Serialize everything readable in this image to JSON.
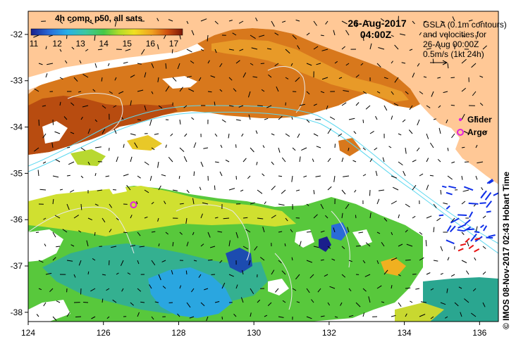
{
  "map": {
    "title_box": "4h comp, p50, all sats",
    "date": "26-Aug-2017",
    "time": "04:00Z",
    "info_lines": [
      "GSLA (0.1m contours)",
      "and velocities for",
      "26-Aug 00:00Z",
      "0.5m/s (1kt 24h)"
    ],
    "legend": {
      "glider_label": "Glider",
      "argo_label": "Argo",
      "glider_color": "#e020e0",
      "argo_color": "#e020e0"
    },
    "colorbar": {
      "min": 11,
      "max": 17.5,
      "ticks": [
        "11",
        "12",
        "13",
        "14",
        "15",
        "16",
        "17"
      ],
      "colors": [
        "#1a1f8c",
        "#2a6bd8",
        "#28b0e8",
        "#3cc8a0",
        "#46c846",
        "#b0dc28",
        "#f0e020",
        "#f0a020",
        "#d05010",
        "#7a1808"
      ]
    },
    "x_ticks": [
      "124",
      "126",
      "128",
      "130",
      "132",
      "134",
      "136"
    ],
    "y_ticks": [
      "-32",
      "-33",
      "-34",
      "-35",
      "-36",
      "-37",
      "-38"
    ],
    "credit": "© IMOS 08-Nov-2017 02:43 Hobart Time",
    "land_color": "#ffc896",
    "argo_position": {
      "lon": 126.8,
      "lat": -35.68
    }
  }
}
